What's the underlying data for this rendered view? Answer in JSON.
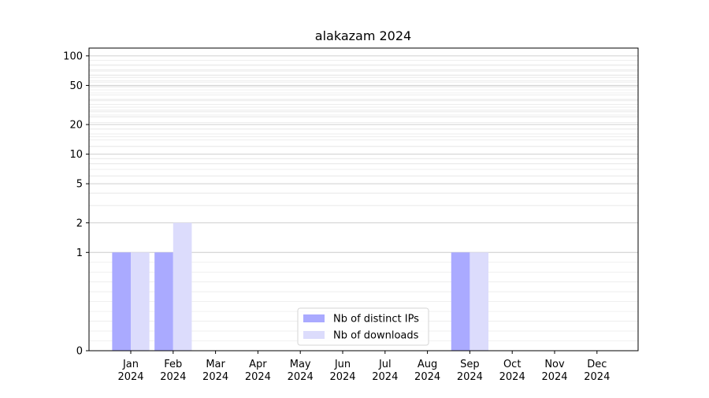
{
  "chart_data": {
    "type": "bar",
    "title": "alakazam 2024",
    "xlabel": "",
    "ylabel": "",
    "yscale": "symlog",
    "ylim": [
      0,
      120
    ],
    "yticks": [
      0,
      1,
      2,
      5,
      10,
      20,
      50,
      100
    ],
    "grid": true,
    "legend_position": "lower-center",
    "categories": [
      [
        "Jan",
        "2024"
      ],
      [
        "Feb",
        "2024"
      ],
      [
        "Mar",
        "2024"
      ],
      [
        "Apr",
        "2024"
      ],
      [
        "May",
        "2024"
      ],
      [
        "Jun",
        "2024"
      ],
      [
        "Jul",
        "2024"
      ],
      [
        "Aug",
        "2024"
      ],
      [
        "Sep",
        "2024"
      ],
      [
        "Oct",
        "2024"
      ],
      [
        "Nov",
        "2024"
      ],
      [
        "Dec",
        "2024"
      ]
    ],
    "series": [
      {
        "name": "Nb of distinct IPs",
        "color": "#aaaaff",
        "values": [
          1,
          1,
          0,
          0,
          0,
          0,
          0,
          0,
          1,
          0,
          0,
          0
        ]
      },
      {
        "name": "Nb of downloads",
        "color": "#dcdcfc",
        "values": [
          1,
          2,
          0,
          0,
          0,
          0,
          0,
          0,
          1,
          0,
          0,
          0
        ]
      }
    ]
  }
}
